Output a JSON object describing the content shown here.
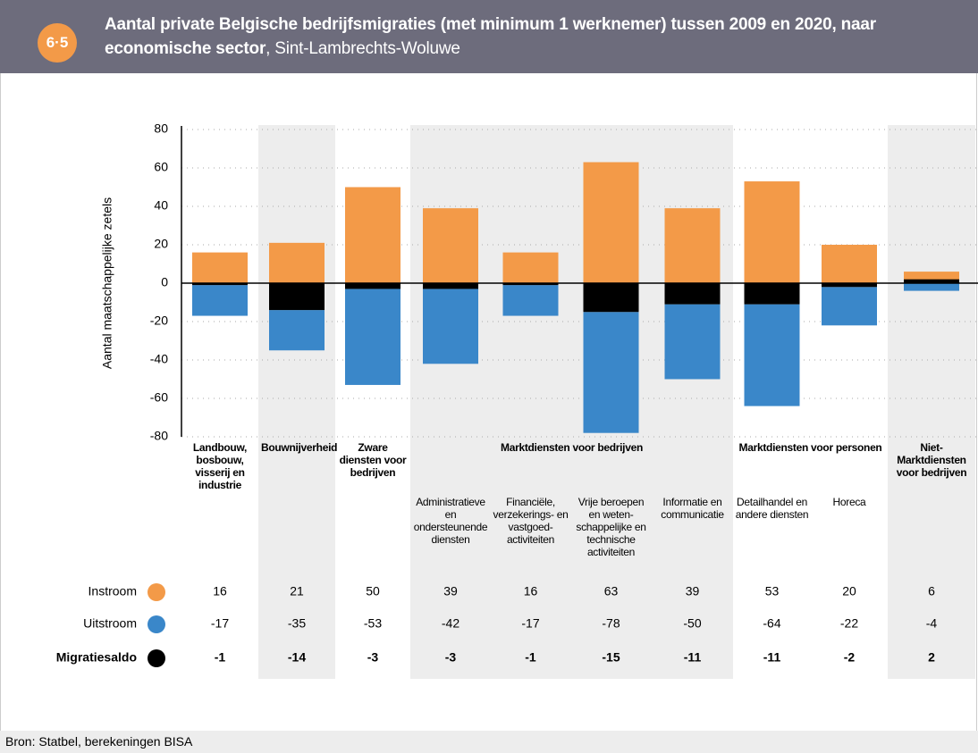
{
  "badge": "6·5",
  "chart_data": {
    "type": "bar",
    "title": "Aantal private Belgische bedrijfsmigraties (met minimum 1 werknemer) tussen 2009 en 2020, naar economische sector",
    "subtitle": ", Sint-Lambrechts-Woluwe",
    "y_label": "Aantal maatschappelijke zetels",
    "groups": [
      {
        "label": "Landbouw, bosbouw, visserij en industrie",
        "subcategories": []
      },
      {
        "label": "Bouwnijverheid",
        "subcategories": []
      },
      {
        "label": "Zware diensten voor bedrijven",
        "subcategories": []
      },
      {
        "label": "Marktdiensten voor bedrijven",
        "subcategories": [
          "Administratieve en ondersteunende diensten",
          "Financiële, verzekerings- en vastgoed-activiteiten",
          "Vrije beroepen en weten-schappelijke en technische activiteiten",
          "Informatie en communicatie"
        ]
      },
      {
        "label": "Marktdiensten voor personen",
        "subcategories": [
          "Detailhandel en andere diensten",
          "Horeca"
        ]
      },
      {
        "label": "Niet-Marktdiensten voor bedrijven",
        "subcategories": []
      }
    ],
    "series": [
      {
        "name": "Instroom",
        "color": "#f39a48",
        "values": [
          16,
          21,
          50,
          39,
          16,
          63,
          39,
          53,
          20,
          6
        ]
      },
      {
        "name": "Uitstroom",
        "color": "#3a87c9",
        "values": [
          -17,
          -35,
          -53,
          -42,
          -17,
          -78,
          -50,
          -64,
          -22,
          -4
        ]
      },
      {
        "name": "Migratiesaldo",
        "color": "#000000",
        "values": [
          -1,
          -14,
          -3,
          -3,
          -1,
          -15,
          -11,
          -11,
          -2,
          2
        ]
      }
    ],
    "ylim": [
      -80,
      80
    ],
    "yticks": [
      -80,
      -60,
      -40,
      -20,
      0,
      20,
      40,
      60,
      80
    ],
    "grid": true
  },
  "source": "Bron: Statbel, berekeningen BISA"
}
